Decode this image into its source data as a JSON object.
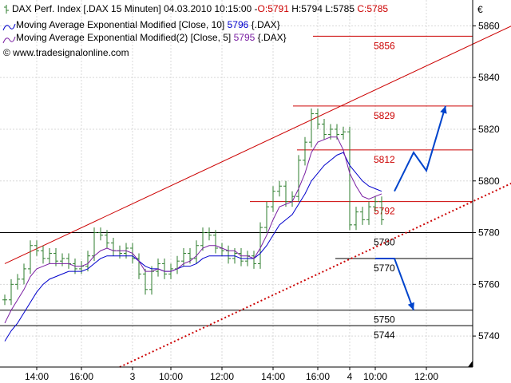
{
  "header": {
    "line1_prefix": "DAX Perf. Index [.DAX  15 Minuten] 04.03.2010 10:15:00 -",
    "ohlc": {
      "open": "O:5791",
      "high": "H:5794",
      "low": "L:5785",
      "close": "C:5785"
    },
    "line2_label": "Moving Average Exponential Modified [Close, 10]",
    "line2_value": "5796",
    "line2_suffix": "{.DAX}",
    "line3_label": "Moving Average Exponential Modified(2) [Close, 5]",
    "line3_value": "5795",
    "line3_suffix": "{.DAX}",
    "line4": "© www.tradesignalonline.com",
    "currency_symbol": "€"
  },
  "colors": {
    "price": "#2e7d2e",
    "ema10": "#0000cc",
    "ema5": "#7a1fa2",
    "level_red": "#cc0000",
    "level_black": "#000000",
    "arrow": "#0044cc",
    "grid": "#d8d8d8",
    "header_red": "#cc0000",
    "header_blue": "#0000cc",
    "header_purple": "#7a1fa2"
  },
  "chart_data": {
    "type": "line",
    "title": "DAX Perf. Index [.DAX  15 Minuten]",
    "ylim": [
      5728,
      5870
    ],
    "yticks": [
      5740,
      5760,
      5780,
      5800,
      5820,
      5840,
      5860
    ],
    "grid": true,
    "x_ticks": [
      "14:00",
      "16:00",
      "3",
      "10:00",
      "12:00",
      "14:00",
      "16:00",
      "4",
      "10:00",
      "12:00"
    ],
    "horizontal_levels": [
      {
        "label": "5856",
        "value": 5856,
        "color": "red"
      },
      {
        "label": "5829",
        "value": 5829,
        "color": "red"
      },
      {
        "label": "5812",
        "value": 5812,
        "color": "red"
      },
      {
        "label": "5792",
        "value": 5792,
        "color": "red"
      },
      {
        "label": "5780",
        "value": 5780,
        "color": "black"
      },
      {
        "label": "5770",
        "value": 5770,
        "color": "black"
      },
      {
        "label": "5750",
        "value": 5750,
        "color": "black"
      },
      {
        "label": "5744",
        "value": 5744,
        "color": "black"
      }
    ],
    "series": [
      {
        "name": "DAX",
        "values": [
          5754,
          5760,
          5762,
          5766,
          5775,
          5773,
          5770,
          5772,
          5769,
          5770,
          5768,
          5766,
          5767,
          5771,
          5780,
          5779,
          5776,
          5773,
          5772,
          5774,
          5770,
          5764,
          5758,
          5765,
          5768,
          5764,
          5766,
          5769,
          5772,
          5770,
          5775,
          5780,
          5779,
          5774,
          5773,
          5770,
          5772,
          5769,
          5771,
          5768,
          5782,
          5790,
          5796,
          5798,
          5792,
          5794,
          5808,
          5815,
          5826,
          5822,
          5818,
          5820,
          5818,
          5819,
          5783,
          5788,
          5785,
          5790,
          5792,
          5785
        ]
      },
      {
        "name": "Moving Average Exponential Modified [Close, 10]",
        "values": [
          5738,
          5742,
          5745,
          5749,
          5753,
          5757,
          5760,
          5762,
          5763,
          5764,
          5765,
          5765,
          5765,
          5766,
          5768,
          5770,
          5771,
          5771,
          5771,
          5771,
          5771,
          5769,
          5767,
          5766,
          5766,
          5765,
          5765,
          5766,
          5767,
          5767,
          5768,
          5770,
          5771,
          5771,
          5771,
          5771,
          5771,
          5770,
          5770,
          5770,
          5772,
          5775,
          5779,
          5783,
          5785,
          5787,
          5791,
          5795,
          5800,
          5803,
          5806,
          5808,
          5810,
          5811,
          5806,
          5803,
          5800,
          5798,
          5797,
          5796
        ]
      },
      {
        "name": "Moving Average Exponential Modified(2) [Close, 5]",
        "values": [
          5745,
          5750,
          5754,
          5758,
          5763,
          5766,
          5767,
          5768,
          5768,
          5768,
          5768,
          5767,
          5767,
          5768,
          5771,
          5773,
          5774,
          5773,
          5773,
          5773,
          5772,
          5769,
          5765,
          5765,
          5766,
          5765,
          5765,
          5766,
          5768,
          5769,
          5771,
          5774,
          5775,
          5775,
          5774,
          5773,
          5773,
          5771,
          5771,
          5770,
          5774,
          5779,
          5785,
          5790,
          5791,
          5792,
          5797,
          5803,
          5811,
          5815,
          5816,
          5817,
          5817,
          5812,
          5803,
          5798,
          5794,
          5793,
          5794,
          5795
        ]
      }
    ],
    "trend_lines": [
      {
        "name": "upper_channel",
        "from": [
          0,
          5768
        ],
        "to": [
          88,
          5870
        ]
      },
      {
        "name": "dotted_support",
        "from": [
          18,
          5728
        ],
        "to": [
          87,
          5808
        ]
      }
    ],
    "arrows": [
      {
        "name": "bull_path",
        "points": [
          [
            61,
            5796
          ],
          [
            64,
            5811
          ],
          [
            66,
            5804
          ],
          [
            69,
            5829
          ]
        ]
      },
      {
        "name": "bear_path",
        "points": [
          [
            58,
            5770
          ],
          [
            61,
            5770
          ],
          [
            64,
            5750
          ]
        ]
      }
    ]
  }
}
